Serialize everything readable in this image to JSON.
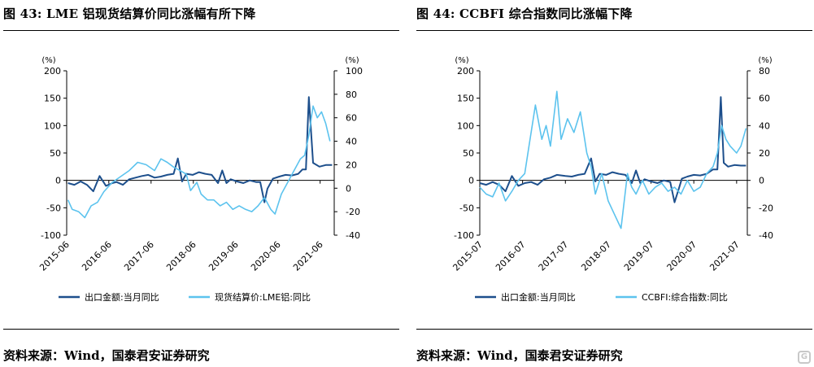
{
  "chart_data": [
    {
      "type": "line",
      "title": "图 43: LME 铝现货结算价同比涨幅有所下降",
      "source": "资料来源：Wind，国泰君安证券研究",
      "y_left_unit": "(%)",
      "y_right_unit": "(%)",
      "ylim_left": [
        -100,
        200
      ],
      "ylim_right": [
        -40,
        100
      ],
      "yticks_left": [
        "200",
        "150",
        "100",
        "50",
        "0",
        "-50",
        "-100"
      ],
      "yticks_right": [
        "100",
        "80",
        "60",
        "40",
        "20",
        "0",
        "-20",
        "-40"
      ],
      "xlim": [
        2015.42,
        2021.75
      ],
      "xticks": [
        "2015-06",
        "2016-06",
        "2017-06",
        "2018-06",
        "2019-06",
        "2020-06",
        "2021-06"
      ],
      "series": [
        {
          "name": "出口金额:当月同比",
          "axis": "left",
          "color": "#1d4f8c",
          "x": [
            2015.45,
            2015.6,
            2015.75,
            2015.9,
            2016.05,
            2016.2,
            2016.35,
            2016.5,
            2016.6,
            2016.75,
            2016.9,
            2017.05,
            2017.2,
            2017.35,
            2017.5,
            2017.65,
            2017.8,
            2017.95,
            2018.05,
            2018.15,
            2018.25,
            2018.4,
            2018.55,
            2018.7,
            2018.85,
            2019.0,
            2019.1,
            2019.2,
            2019.3,
            2019.45,
            2019.6,
            2019.75,
            2019.9,
            2020.0,
            2020.1,
            2020.17,
            2020.3,
            2020.45,
            2020.6,
            2020.75,
            2020.9,
            2021.0,
            2021.08,
            2021.15,
            2021.25,
            2021.4,
            2021.55,
            2021.7
          ],
          "y": [
            -5,
            -8,
            -2,
            -8,
            -20,
            8,
            -10,
            -5,
            -3,
            -8,
            2,
            5,
            8,
            10,
            5,
            7,
            10,
            12,
            40,
            -2,
            12,
            10,
            15,
            12,
            10,
            -5,
            18,
            -5,
            2,
            -2,
            -5,
            0,
            -3,
            -3,
            -40,
            -15,
            3,
            7,
            10,
            9,
            12,
            20,
            20,
            152,
            32,
            25,
            28,
            28
          ]
        },
        {
          "name": "现货结算价:LME铝:同比",
          "axis": "right",
          "color": "#5cc3ee",
          "x": [
            2015.45,
            2015.55,
            2015.7,
            2015.85,
            2016.0,
            2016.15,
            2016.3,
            2016.5,
            2016.7,
            2016.9,
            2017.1,
            2017.3,
            2017.5,
            2017.65,
            2017.8,
            2017.95,
            2018.1,
            2018.25,
            2018.35,
            2018.5,
            2018.6,
            2018.75,
            2018.9,
            2019.05,
            2019.2,
            2019.35,
            2019.5,
            2019.65,
            2019.8,
            2019.95,
            2020.1,
            2020.25,
            2020.35,
            2020.5,
            2020.65,
            2020.8,
            2020.95,
            2021.05,
            2021.15,
            2021.25,
            2021.35,
            2021.45,
            2021.55,
            2021.65
          ],
          "y": [
            -10,
            -18,
            -20,
            -25,
            -15,
            -12,
            -3,
            5,
            10,
            15,
            22,
            20,
            15,
            25,
            22,
            18,
            15,
            12,
            -2,
            5,
            -5,
            -10,
            -10,
            -15,
            -12,
            -18,
            -15,
            -18,
            -20,
            -15,
            -8,
            -18,
            -22,
            -5,
            5,
            15,
            25,
            28,
            45,
            70,
            60,
            65,
            55,
            40
          ]
        }
      ]
    },
    {
      "type": "line",
      "title": "图 44: CCBFI 综合指数同比涨幅下降",
      "source": "资料来源：Wind，国泰君安证券研究",
      "y_left_unit": "(%)",
      "y_right_unit": "(%)",
      "ylim_left": [
        -100,
        200
      ],
      "ylim_right": [
        -40,
        80
      ],
      "yticks_left": [
        "200",
        "150",
        "100",
        "50",
        "0",
        "-50",
        "-100"
      ],
      "yticks_right": [
        "80",
        "60",
        "40",
        "20",
        "0",
        "-20",
        "-40"
      ],
      "xlim": [
        2015.5,
        2021.75
      ],
      "xticks": [
        "2015-07",
        "2016-07",
        "2017-07",
        "2018-07",
        "2019-07",
        "2020-07",
        "2021-07"
      ],
      "series": [
        {
          "name": "出口金额:当月同比",
          "axis": "left",
          "color": "#1d4f8c",
          "x": [
            2015.5,
            2015.65,
            2015.8,
            2015.95,
            2016.1,
            2016.25,
            2016.4,
            2016.55,
            2016.7,
            2016.85,
            2017.0,
            2017.15,
            2017.3,
            2017.5,
            2017.65,
            2017.8,
            2017.95,
            2018.1,
            2018.2,
            2018.3,
            2018.45,
            2018.6,
            2018.75,
            2018.9,
            2019.05,
            2019.15,
            2019.25,
            2019.35,
            2019.5,
            2019.65,
            2019.8,
            2019.95,
            2020.05,
            2020.15,
            2020.22,
            2020.35,
            2020.5,
            2020.65,
            2020.8,
            2020.95,
            2021.05,
            2021.13,
            2021.2,
            2021.3,
            2021.45,
            2021.6,
            2021.72
          ],
          "y": [
            -5,
            -8,
            -3,
            -8,
            -20,
            8,
            -10,
            -5,
            -3,
            -8,
            2,
            5,
            10,
            8,
            7,
            10,
            12,
            40,
            -2,
            12,
            10,
            15,
            12,
            10,
            -5,
            18,
            -5,
            2,
            -2,
            -5,
            0,
            -3,
            -40,
            -15,
            3,
            7,
            10,
            9,
            12,
            20,
            20,
            152,
            32,
            25,
            28,
            27,
            27
          ]
        },
        {
          "name": "CCBFI:综合指数:同比",
          "axis": "right",
          "color": "#5cc3ee",
          "x": [
            2015.5,
            2015.65,
            2015.8,
            2015.95,
            2016.1,
            2016.25,
            2016.4,
            2016.55,
            2016.65,
            2016.8,
            2016.95,
            2017.05,
            2017.15,
            2017.3,
            2017.4,
            2017.55,
            2017.7,
            2017.85,
            2018.0,
            2018.1,
            2018.2,
            2018.35,
            2018.5,
            2018.65,
            2018.8,
            2018.95,
            2019.05,
            2019.15,
            2019.3,
            2019.45,
            2019.6,
            2019.75,
            2019.9,
            2020.05,
            2020.2,
            2020.35,
            2020.5,
            2020.65,
            2020.8,
            2020.95,
            2021.05,
            2021.15,
            2021.25,
            2021.35,
            2021.5,
            2021.6,
            2021.72
          ],
          "y": [
            -5,
            -10,
            -12,
            -2,
            -15,
            -8,
            0,
            5,
            25,
            55,
            30,
            40,
            25,
            65,
            30,
            45,
            35,
            50,
            20,
            10,
            -10,
            5,
            -15,
            -25,
            -35,
            5,
            -5,
            -10,
            0,
            -10,
            -5,
            -2,
            -8,
            -5,
            -10,
            0,
            -8,
            -5,
            5,
            10,
            20,
            40,
            30,
            25,
            20,
            25,
            38
          ]
        }
      ]
    }
  ]
}
